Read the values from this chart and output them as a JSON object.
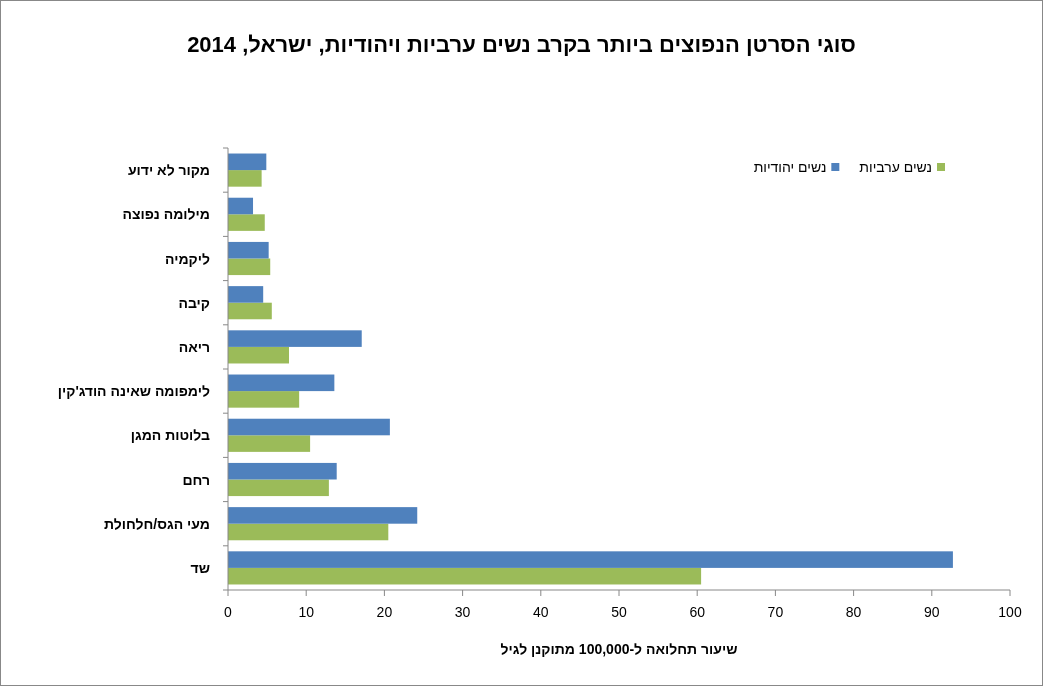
{
  "chart_data": {
    "type": "bar",
    "orientation": "horizontal",
    "title": "סוגי הסרטן הנפוצים ביותר בקרב נשים ערביות ויהודיות, ישראל, 2014",
    "xlabel": "שיעור תחלואה ל-100,000 מתוקנן לגיל",
    "categories": [
      "מקור לא ידוע",
      "מילומה נפוצה",
      "ליקמיה",
      "קיבה",
      "ריאה",
      "לימפומה שאינה הודג'קין",
      "בלוטות המגן",
      "רחם",
      "מעי הגס/חלחולת",
      "שד"
    ],
    "series": [
      {
        "name": "נשים ערביות",
        "color": "#9bbb59",
        "values": [
          4.3,
          4.7,
          5.4,
          5.6,
          7.8,
          9.1,
          10.5,
          12.9,
          20.5,
          60.5
        ]
      },
      {
        "name": "נשים יהודיות",
        "color": "#4f81bd",
        "values": [
          4.9,
          3.2,
          5.2,
          4.5,
          17.1,
          13.6,
          20.7,
          13.9,
          24.2,
          92.7
        ]
      }
    ],
    "xlim": [
      0,
      100
    ],
    "xticks": [
      0,
      10,
      20,
      30,
      40,
      50,
      60,
      70,
      80,
      90,
      100
    ],
    "grid": false,
    "legend": "top right"
  }
}
